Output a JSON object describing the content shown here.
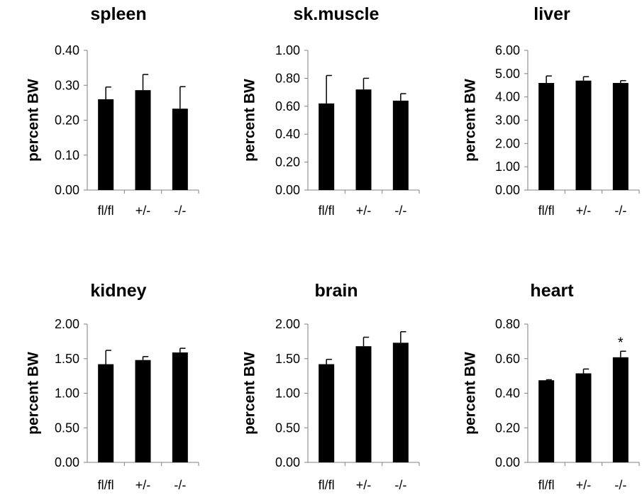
{
  "chart_data": [
    {
      "type": "bar",
      "title": "spleen",
      "ylabel": "percent BW",
      "categories": [
        "fl/fl",
        "+/-",
        "-/-"
      ],
      "values": [
        0.26,
        0.286,
        0.233
      ],
      "errors": [
        0.035,
        0.045,
        0.063
      ],
      "ylim": [
        0,
        0.4
      ],
      "yticks": [
        "0.00",
        "0.10",
        "0.20",
        "0.30",
        "0.40"
      ],
      "annotations": [
        "",
        "",
        ""
      ]
    },
    {
      "type": "bar",
      "title": "sk.muscle",
      "ylabel": "percent BW",
      "categories": [
        "fl/fl",
        "+/-",
        "-/-"
      ],
      "values": [
        0.62,
        0.72,
        0.64
      ],
      "errors": [
        0.2,
        0.08,
        0.05
      ],
      "ylim": [
        0,
        1.0
      ],
      "yticks": [
        "0.00",
        "0.20",
        "0.40",
        "0.60",
        "0.80",
        "1.00"
      ],
      "annotations": [
        "",
        "",
        ""
      ]
    },
    {
      "type": "bar",
      "title": "liver",
      "ylabel": "percent BW",
      "categories": [
        "fl/fl",
        "+/-",
        "-/-"
      ],
      "values": [
        4.6,
        4.7,
        4.6
      ],
      "errors": [
        0.3,
        0.17,
        0.1
      ],
      "ylim": [
        0,
        6.0
      ],
      "yticks": [
        "0.00",
        "1.00",
        "2.00",
        "3.00",
        "4.00",
        "5.00",
        "6.00"
      ],
      "annotations": [
        "",
        "",
        ""
      ]
    },
    {
      "type": "bar",
      "title": "kidney",
      "ylabel": "percent BW",
      "categories": [
        "fl/fl",
        "+/-",
        "-/-"
      ],
      "values": [
        1.42,
        1.48,
        1.59
      ],
      "errors": [
        0.2,
        0.05,
        0.06
      ],
      "ylim": [
        0,
        2.0
      ],
      "yticks": [
        "0.00",
        "0.50",
        "1.00",
        "1.50",
        "2.00"
      ],
      "annotations": [
        "",
        "",
        ""
      ]
    },
    {
      "type": "bar",
      "title": "brain",
      "ylabel": "percent BW",
      "categories": [
        "fl/fl",
        "+/-",
        "-/-"
      ],
      "values": [
        1.42,
        1.68,
        1.73
      ],
      "errors": [
        0.07,
        0.13,
        0.16
      ],
      "ylim": [
        0,
        2.0
      ],
      "yticks": [
        "0.00",
        "0.50",
        "1.00",
        "1.50",
        "2.00"
      ],
      "annotations": [
        "",
        "",
        ""
      ]
    },
    {
      "type": "bar",
      "title": "heart",
      "ylabel": "percent BW",
      "categories": [
        "fl/fl",
        "+/-",
        "-/-"
      ],
      "values": [
        0.475,
        0.515,
        0.608
      ],
      "errors": [
        0.003,
        0.025,
        0.035
      ],
      "ylim": [
        0,
        0.8
      ],
      "yticks": [
        "0.00",
        "0.20",
        "0.40",
        "0.60",
        "0.80"
      ],
      "annotations": [
        "",
        "",
        "*"
      ]
    }
  ]
}
